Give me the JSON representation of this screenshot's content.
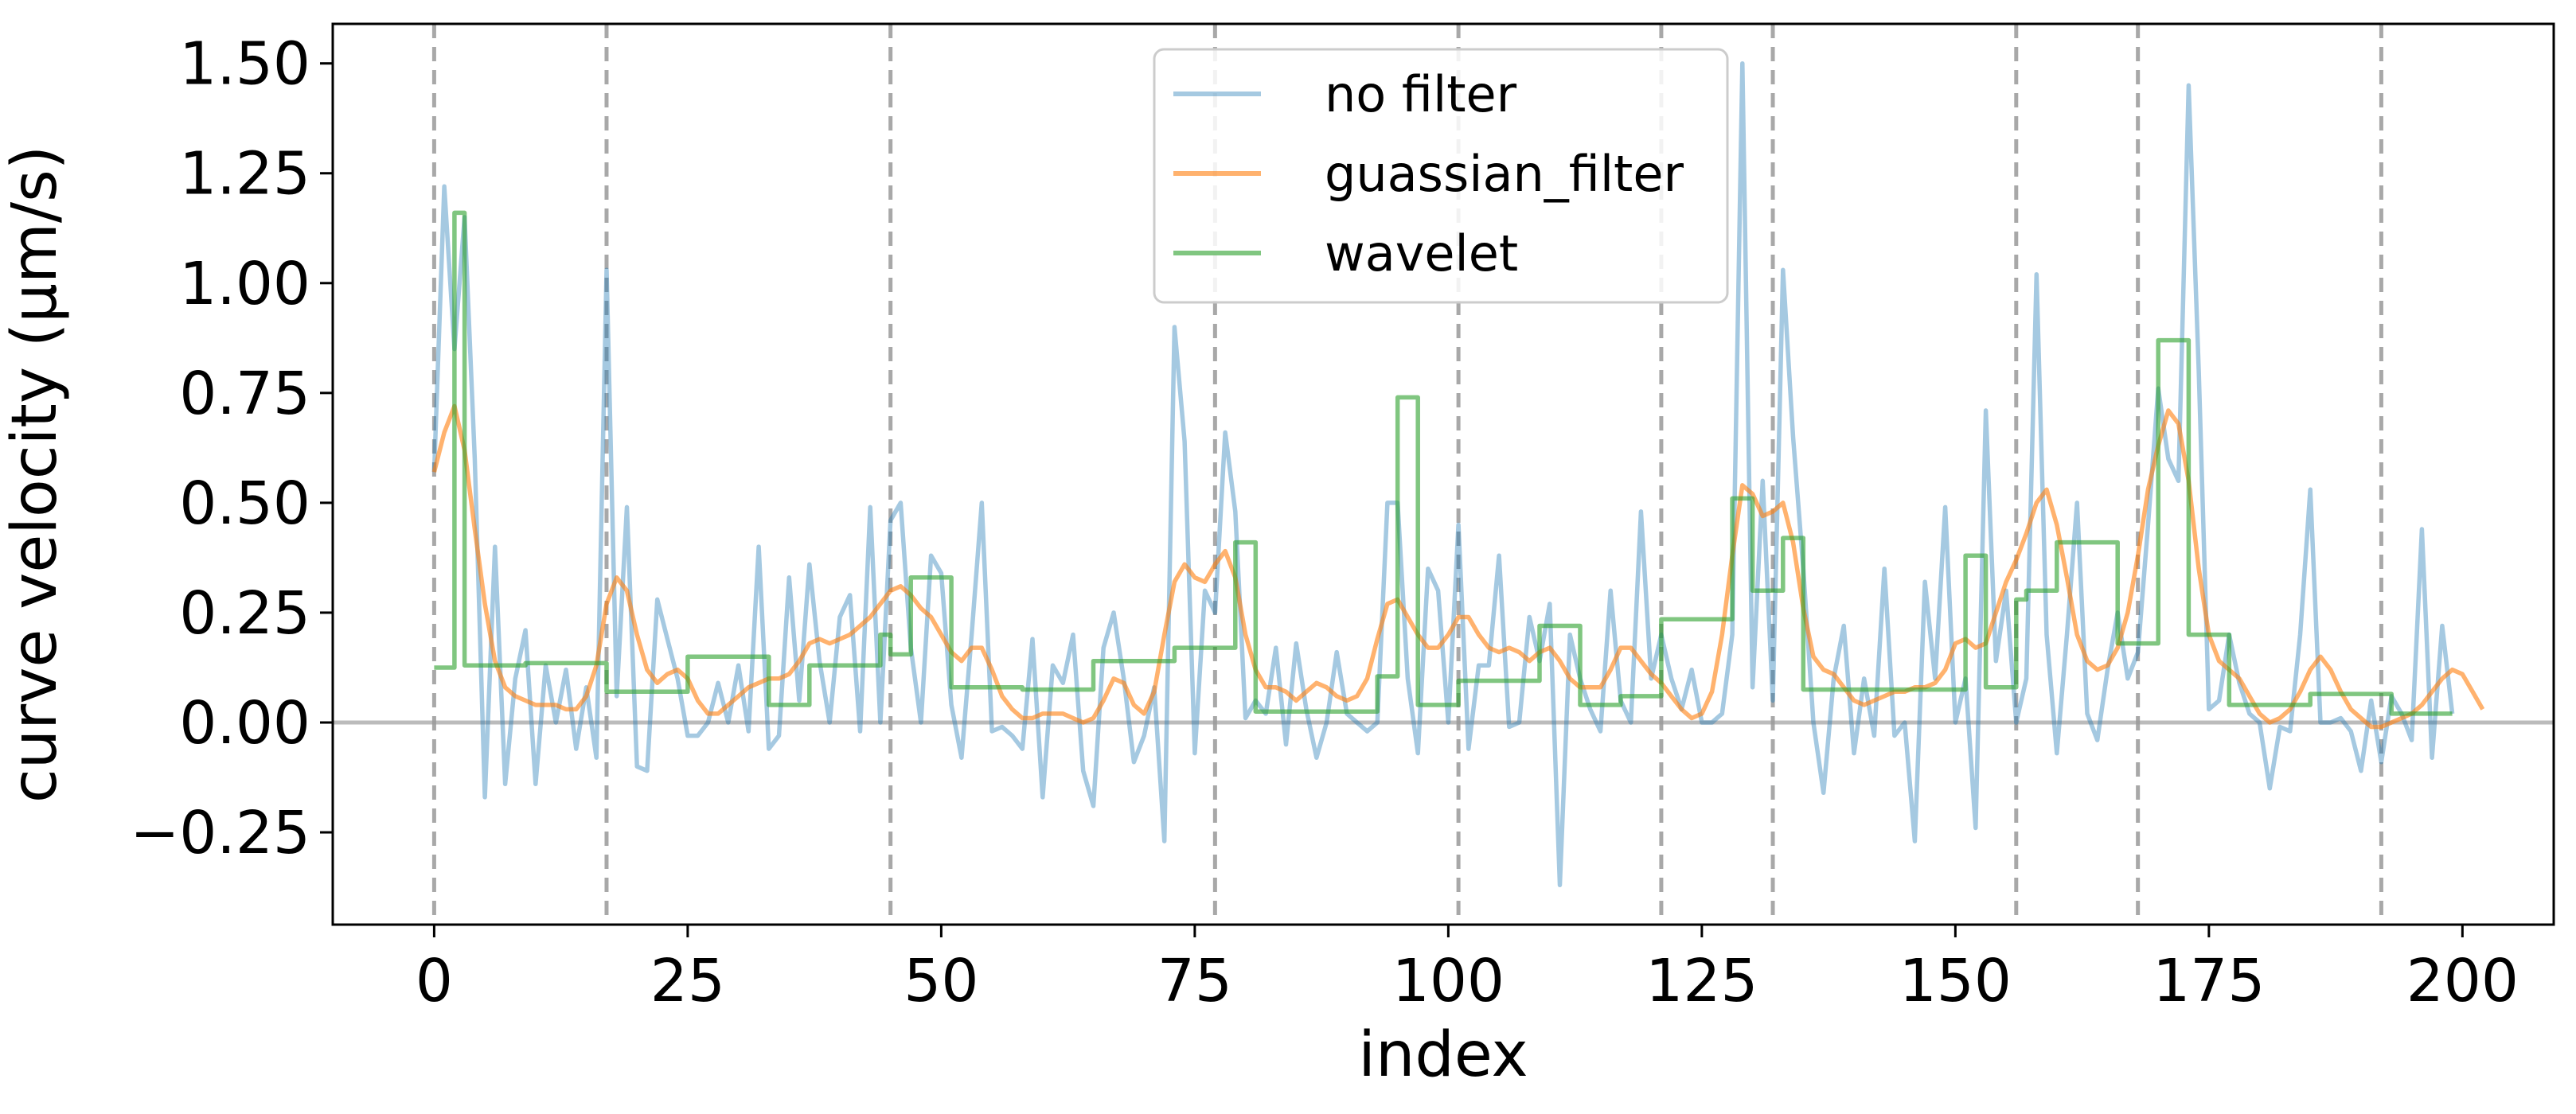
{
  "chart_data": {
    "type": "line",
    "xlabel": "index",
    "ylabel": "curve velocity (μm/s)",
    "xlim": [
      -10,
      209
    ],
    "ylim": [
      -0.46,
      1.59
    ],
    "xticks": [
      0,
      25,
      50,
      75,
      100,
      125,
      150,
      175,
      200
    ],
    "yticks": [
      -0.25,
      0.0,
      0.25,
      0.5,
      0.75,
      1.0,
      1.25,
      1.5
    ],
    "ytick_labels": [
      "−0.25",
      "0.00",
      "0.25",
      "0.50",
      "0.75",
      "1.00",
      "1.25",
      "1.50"
    ],
    "legend_position": "upper center",
    "grid": false,
    "reference_line_y": 0,
    "segment_boundaries": [
      0,
      17,
      45,
      77,
      101,
      121,
      132,
      156,
      168,
      192
    ],
    "series": [
      {
        "name": "no filter",
        "color": "#1f77b4",
        "opacity": 0.4,
        "x_start": 0,
        "values": [
          0.57,
          1.22,
          0.85,
          1.15,
          0.6,
          -0.17,
          0.4,
          -0.14,
          0.1,
          0.21,
          -0.14,
          0.13,
          0.0,
          0.12,
          -0.06,
          0.08,
          -0.08,
          1.03,
          0.06,
          0.49,
          -0.1,
          -0.11,
          0.28,
          0.19,
          0.1,
          -0.03,
          -0.03,
          0.0,
          0.09,
          0.0,
          0.13,
          -0.02,
          0.4,
          -0.06,
          -0.03,
          0.33,
          0.05,
          0.36,
          0.14,
          0.0,
          0.24,
          0.29,
          -0.02,
          0.49,
          0.0,
          0.46,
          0.5,
          0.17,
          0.0,
          0.38,
          0.34,
          0.04,
          -0.08,
          0.2,
          0.5,
          -0.02,
          -0.01,
          -0.03,
          -0.06,
          0.19,
          -0.17,
          0.13,
          0.09,
          0.2,
          -0.11,
          -0.19,
          0.17,
          0.25,
          0.1,
          -0.09,
          -0.03,
          0.08,
          -0.27,
          0.9,
          0.64,
          -0.07,
          0.3,
          0.25,
          0.66,
          0.48,
          0.01,
          0.05,
          0.02,
          0.17,
          -0.05,
          0.18,
          0.03,
          -0.08,
          0.0,
          0.16,
          0.02,
          0.0,
          -0.02,
          0.0,
          0.5,
          0.5,
          0.1,
          -0.07,
          0.35,
          0.3,
          0.0,
          0.45,
          -0.06,
          0.13,
          0.13,
          0.38,
          -0.01,
          0.0,
          0.24,
          0.14,
          0.27,
          -0.37,
          0.2,
          0.1,
          0.03,
          -0.02,
          0.3,
          0.05,
          0.0,
          0.48,
          0.1,
          0.2,
          0.1,
          0.03,
          0.12,
          0.0,
          0.0,
          0.02,
          0.2,
          1.5,
          0.08,
          0.55,
          0.05,
          1.03,
          0.65,
          0.35,
          0.0,
          -0.16,
          0.1,
          0.22,
          -0.07,
          0.1,
          -0.03,
          0.35,
          -0.03,
          0.0,
          -0.27,
          0.32,
          0.1,
          0.49,
          0.0,
          0.1,
          -0.24,
          0.71,
          0.14,
          0.3,
          0.0,
          0.1,
          1.02,
          0.2,
          -0.07,
          0.2,
          0.5,
          0.02,
          -0.04,
          0.12,
          0.25,
          0.1,
          0.16,
          0.45,
          0.76,
          0.6,
          0.55,
          1.45,
          0.8,
          0.03,
          0.05,
          0.2,
          0.09,
          0.02,
          0.0,
          -0.15,
          -0.01,
          -0.02,
          0.2,
          0.53,
          0.0,
          0.0,
          0.01,
          -0.02,
          -0.11,
          0.05,
          -0.09,
          0.06,
          0.02,
          -0.04,
          0.44,
          -0.08,
          0.22,
          0.02
        ]
      },
      {
        "name": "guassian_filter",
        "color": "#ff7f0e",
        "opacity": 0.6,
        "x_start": 0,
        "values": [
          0.57,
          0.66,
          0.72,
          0.62,
          0.44,
          0.27,
          0.14,
          0.08,
          0.06,
          0.05,
          0.04,
          0.04,
          0.04,
          0.03,
          0.03,
          0.06,
          0.13,
          0.27,
          0.33,
          0.3,
          0.2,
          0.12,
          0.09,
          0.11,
          0.12,
          0.1,
          0.05,
          0.02,
          0.02,
          0.04,
          0.06,
          0.08,
          0.09,
          0.1,
          0.1,
          0.11,
          0.14,
          0.18,
          0.19,
          0.18,
          0.19,
          0.2,
          0.22,
          0.24,
          0.27,
          0.3,
          0.31,
          0.29,
          0.26,
          0.24,
          0.2,
          0.16,
          0.14,
          0.17,
          0.17,
          0.12,
          0.06,
          0.03,
          0.01,
          0.01,
          0.02,
          0.02,
          0.02,
          0.01,
          0.0,
          0.01,
          0.05,
          0.1,
          0.09,
          0.04,
          0.02,
          0.07,
          0.2,
          0.32,
          0.36,
          0.33,
          0.32,
          0.36,
          0.39,
          0.33,
          0.2,
          0.12,
          0.08,
          0.08,
          0.07,
          0.05,
          0.07,
          0.09,
          0.08,
          0.06,
          0.05,
          0.06,
          0.1,
          0.19,
          0.27,
          0.28,
          0.24,
          0.2,
          0.17,
          0.17,
          0.2,
          0.24,
          0.24,
          0.2,
          0.17,
          0.16,
          0.17,
          0.16,
          0.14,
          0.16,
          0.17,
          0.14,
          0.1,
          0.08,
          0.08,
          0.08,
          0.12,
          0.17,
          0.17,
          0.14,
          0.11,
          0.09,
          0.06,
          0.03,
          0.01,
          0.02,
          0.07,
          0.2,
          0.38,
          0.54,
          0.52,
          0.47,
          0.48,
          0.5,
          0.41,
          0.26,
          0.15,
          0.12,
          0.11,
          0.08,
          0.05,
          0.04,
          0.05,
          0.06,
          0.07,
          0.07,
          0.08,
          0.08,
          0.09,
          0.12,
          0.18,
          0.19,
          0.17,
          0.18,
          0.25,
          0.32,
          0.37,
          0.43,
          0.5,
          0.53,
          0.45,
          0.33,
          0.2,
          0.14,
          0.12,
          0.13,
          0.17,
          0.25,
          0.38,
          0.53,
          0.63,
          0.71,
          0.68,
          0.55,
          0.35,
          0.2,
          0.14,
          0.12,
          0.1,
          0.06,
          0.02,
          0.0,
          0.01,
          0.03,
          0.07,
          0.12,
          0.15,
          0.12,
          0.07,
          0.03,
          0.01,
          -0.01,
          -0.01,
          0.0,
          0.01,
          0.02,
          0.04,
          0.07,
          0.1,
          0.12,
          0.11,
          0.07,
          0.03
        ]
      },
      {
        "name": "wavelet",
        "color": "#2ca02c",
        "opacity": 0.6,
        "steps": [
          [
            0,
            0.125
          ],
          [
            2,
            1.16
          ],
          [
            3,
            0.13
          ],
          [
            9,
            0.135
          ],
          [
            17,
            0.07
          ],
          [
            25,
            0.15
          ],
          [
            33,
            0.04
          ],
          [
            37,
            0.13
          ],
          [
            44,
            0.2
          ],
          [
            45,
            0.155
          ],
          [
            47,
            0.33
          ],
          [
            51,
            0.08
          ],
          [
            58,
            0.075
          ],
          [
            65,
            0.14
          ],
          [
            73,
            0.17
          ],
          [
            79,
            0.41
          ],
          [
            81,
            0.025
          ],
          [
            93,
            0.105
          ],
          [
            95,
            0.74
          ],
          [
            97,
            0.04
          ],
          [
            101,
            0.095
          ],
          [
            109,
            0.22
          ],
          [
            113,
            0.04
          ],
          [
            117,
            0.06
          ],
          [
            121,
            0.235
          ],
          [
            128,
            0.51
          ],
          [
            130,
            0.3
          ],
          [
            133,
            0.42
          ],
          [
            135,
            0.075
          ],
          [
            151,
            0.38
          ],
          [
            153,
            0.08
          ],
          [
            156,
            0.28
          ],
          [
            157,
            0.3
          ],
          [
            160,
            0.41
          ],
          [
            166,
            0.18
          ],
          [
            170,
            0.87
          ],
          [
            173,
            0.2
          ],
          [
            177,
            0.04
          ],
          [
            185,
            0.065
          ],
          [
            193,
            0.02
          ]
        ],
        "x_end": 199
      }
    ]
  }
}
